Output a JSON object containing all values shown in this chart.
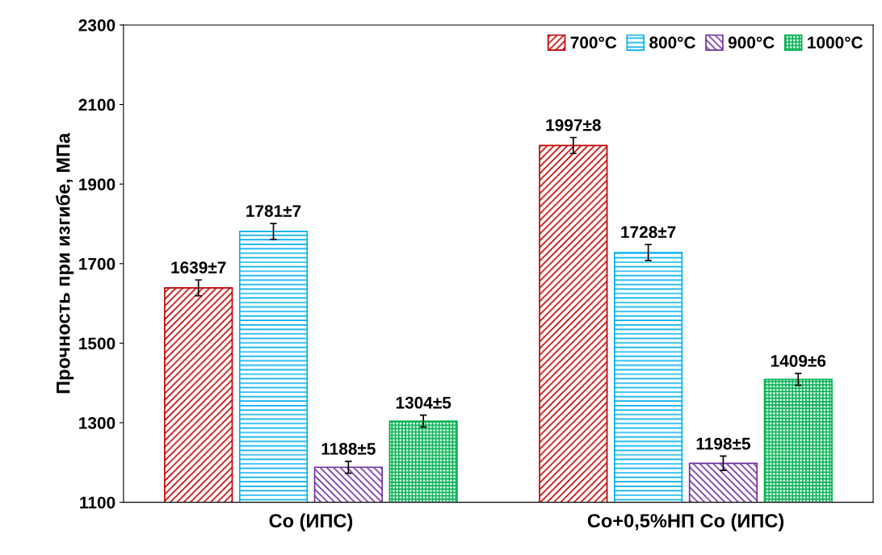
{
  "chart_data": {
    "type": "bar",
    "ylabel": "Прочность при изгибе, МПа",
    "categories": [
      "Co (ИПС)",
      "Co+0,5%НП Co (ИПС)"
    ],
    "series": [
      {
        "name": "700°C",
        "color": "#c00000",
        "values": [
          1639,
          1997
        ],
        "errors": [
          20,
          20
        ],
        "value_labels": [
          "1639±7",
          "1997±8"
        ]
      },
      {
        "name": "800°C",
        "color": "#00b0f0",
        "values": [
          1781,
          1728
        ],
        "errors": [
          20,
          20
        ],
        "value_labels": [
          "1781±7",
          "1728±7"
        ]
      },
      {
        "name": "900°C",
        "color": "#7030a0",
        "values": [
          1188,
          1198
        ],
        "errors": [
          15,
          18
        ],
        "value_labels": [
          "1188±5",
          "1198±5"
        ]
      },
      {
        "name": "1000°C",
        "color": "#00b050",
        "values": [
          1304,
          1409
        ],
        "errors": [
          15,
          15
        ],
        "value_labels": [
          "1304±5",
          "1409±6"
        ]
      }
    ],
    "ylim": [
      1100,
      2300
    ],
    "yticks": [
      1100,
      1300,
      1500,
      1700,
      1900,
      2100,
      2300
    ],
    "grid": false,
    "legend": "top right"
  }
}
